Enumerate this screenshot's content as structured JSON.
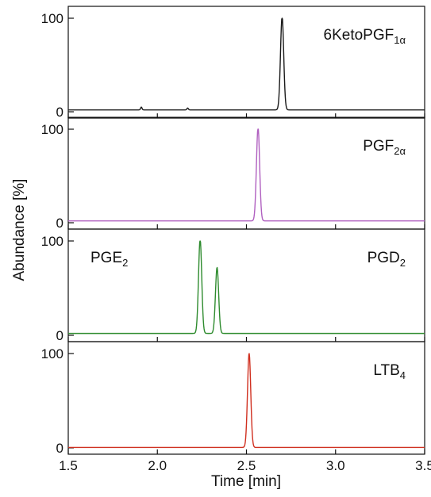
{
  "chart_data": {
    "type": "line",
    "layout": "stacked panels sharing x axis",
    "xlabel": "Time [min]",
    "ylabel": "Abundance [%]",
    "xlim": [
      1.5,
      3.5
    ],
    "ylim": [
      0,
      100
    ],
    "x_ticks": [
      "1.5",
      "2.0",
      "2.5",
      "3.0",
      "3.5"
    ],
    "y_ticks": [
      "0",
      "100"
    ],
    "grid": false,
    "panels": [
      {
        "label": "6KetoPGF",
        "label_sub": "1α",
        "label_position": "top-right",
        "color": "#1a1a1a",
        "baseline": 2,
        "peaks": [
          {
            "x": 2.7,
            "y": 100,
            "width": 0.009
          }
        ],
        "minor_bumps": [
          {
            "x": 1.91,
            "y": 3,
            "width": 0.004
          },
          {
            "x": 2.17,
            "y": 2,
            "width": 0.004
          }
        ]
      },
      {
        "label": "PGF",
        "label_sub": "2α",
        "label_position": "top-right",
        "color": "#b060c0",
        "baseline": 2,
        "peaks": [
          {
            "x": 2.565,
            "y": 100,
            "width": 0.009
          }
        ],
        "minor_bumps": []
      },
      {
        "label": "PGE",
        "label_sub": "2",
        "label_position": "top-left",
        "label2": "PGD",
        "label2_sub": "2",
        "label2_position": "top-right",
        "color": "#2e8b2e",
        "baseline": 2,
        "peaks": [
          {
            "x": 2.24,
            "y": 100,
            "width": 0.009
          },
          {
            "x": 2.335,
            "y": 70,
            "width": 0.009
          }
        ],
        "minor_bumps": []
      },
      {
        "label": "LTB",
        "label_sub": "4",
        "label_position": "top-right",
        "color": "#d03020",
        "baseline": 0.5,
        "peaks": [
          {
            "x": 2.515,
            "y": 100,
            "width": 0.009
          }
        ],
        "minor_bumps": []
      }
    ]
  }
}
